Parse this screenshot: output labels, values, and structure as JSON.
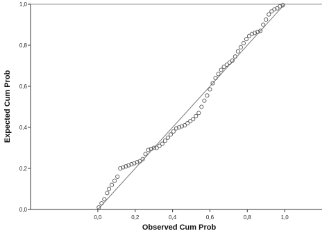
{
  "chart_data": {
    "type": "scatter",
    "xlabel": "Observed Cum Prob",
    "ylabel": "Expected Cum Prob",
    "xlim": [
      -0.36,
      1.2
    ],
    "ylim": [
      0,
      1.0
    ],
    "x_ticks": [
      0.0,
      0.2,
      0.4,
      0.6,
      0.8,
      1.0
    ],
    "x_tick_labels": [
      "0,0",
      "0,2",
      "0,4",
      "0,6",
      "0,8",
      "1,0"
    ],
    "y_ticks": [
      0.0,
      0.2,
      0.4,
      0.6,
      0.8,
      1.0
    ],
    "y_tick_labels": [
      "0,0",
      "0,2",
      "0,4",
      "0,6",
      "0,8",
      "1,0"
    ],
    "grid": false,
    "reference_line": [
      [
        0.0,
        0.0
      ],
      [
        1.0,
        1.0
      ]
    ],
    "colors": {
      "points": "#555555",
      "reference_line": "#777777",
      "axis": "#333333"
    },
    "points": {
      "x": [
        0.005,
        0.02,
        0.035,
        0.05,
        0.06,
        0.075,
        0.09,
        0.105,
        0.12,
        0.135,
        0.15,
        0.165,
        0.18,
        0.195,
        0.21,
        0.225,
        0.24,
        0.255,
        0.27,
        0.285,
        0.3,
        0.315,
        0.33,
        0.345,
        0.36,
        0.375,
        0.39,
        0.405,
        0.42,
        0.435,
        0.45,
        0.465,
        0.48,
        0.495,
        0.51,
        0.525,
        0.54,
        0.555,
        0.57,
        0.585,
        0.6,
        0.615,
        0.63,
        0.645,
        0.66,
        0.675,
        0.69,
        0.705,
        0.72,
        0.735,
        0.75,
        0.765,
        0.78,
        0.795,
        0.81,
        0.825,
        0.84,
        0.855,
        0.87,
        0.885,
        0.9,
        0.915,
        0.93,
        0.945,
        0.96,
        0.975,
        0.99
      ],
      "y": [
        0.01,
        0.03,
        0.05,
        0.08,
        0.1,
        0.12,
        0.14,
        0.16,
        0.2,
        0.205,
        0.21,
        0.215,
        0.22,
        0.225,
        0.23,
        0.235,
        0.245,
        0.27,
        0.29,
        0.295,
        0.3,
        0.3,
        0.31,
        0.32,
        0.335,
        0.35,
        0.365,
        0.38,
        0.395,
        0.4,
        0.405,
        0.41,
        0.42,
        0.43,
        0.44,
        0.455,
        0.47,
        0.5,
        0.53,
        0.555,
        0.585,
        0.615,
        0.64,
        0.66,
        0.68,
        0.695,
        0.705,
        0.715,
        0.725,
        0.745,
        0.77,
        0.79,
        0.81,
        0.83,
        0.845,
        0.855,
        0.86,
        0.865,
        0.87,
        0.9,
        0.925,
        0.95,
        0.965,
        0.975,
        0.98,
        0.99,
        0.995
      ]
    }
  }
}
